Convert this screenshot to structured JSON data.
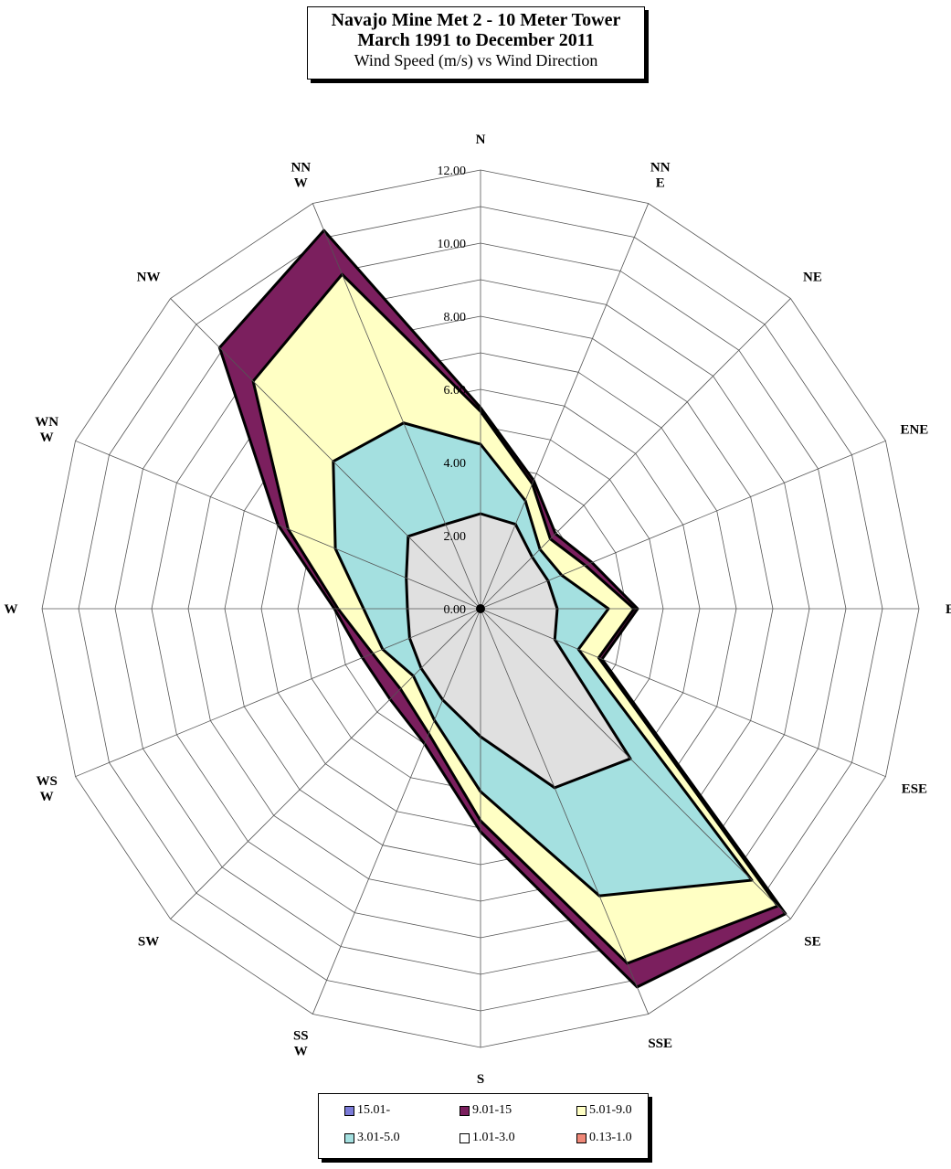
{
  "title": {
    "line1": "Navajo Mine Met 2 - 10 Meter Tower",
    "line2": "March 1991 to December 2011",
    "line3": "Wind Speed (m/s) vs Wind Direction"
  },
  "chart_data": {
    "type": "radar",
    "title": "Navajo Mine Met 2 - 10 Meter Tower March 1991 to December 2011 Wind Speed (m/s) vs Wind Direction",
    "directions": [
      [
        "N"
      ],
      [
        "NN",
        "E"
      ],
      [
        "NE"
      ],
      [
        "ENE"
      ],
      [
        "E"
      ],
      [
        "ESE"
      ],
      [
        "SE"
      ],
      [
        "SSE"
      ],
      [
        "S"
      ],
      [
        "SS",
        "W"
      ],
      [
        "SW"
      ],
      [
        "WS",
        "W"
      ],
      [
        "W"
      ],
      [
        "WN",
        "W"
      ],
      [
        "NW"
      ],
      [
        "NN",
        "W"
      ]
    ],
    "radial_ticks": [
      "0.00",
      "2.00",
      "4.00",
      "6.00",
      "8.00",
      "10.00",
      "12.00"
    ],
    "rmax": 12,
    "series": [
      {
        "name": "9.01-15",
        "color": "#7b1f5e",
        "values": [
          5.5,
          3.8,
          2.9,
          3.3,
          4.3,
          3.6,
          11.8,
          11.2,
          6.1,
          4.0,
          3.5,
          3.5,
          4.0,
          6.0,
          10.1,
          11.2
        ]
      },
      {
        "name": "5.01-9.0",
        "color": "#ffffc4",
        "values": [
          5.4,
          3.7,
          2.7,
          3.1,
          4.2,
          3.5,
          11.5,
          10.5,
          5.8,
          3.7,
          3.1,
          3.2,
          3.9,
          5.7,
          8.8,
          9.9
        ]
      },
      {
        "name": "3.01-5.0",
        "color": "#a4e0e0",
        "values": [
          4.5,
          3.2,
          2.3,
          2.4,
          3.5,
          2.9,
          10.5,
          8.5,
          5.0,
          3.3,
          2.6,
          2.9,
          3.2,
          4.3,
          5.7,
          5.5
        ]
      },
      {
        "name": "1.01-3.0",
        "color": "#e0e0e0",
        "values": [
          2.6,
          2.5,
          2.0,
          2.0,
          2.1,
          2.2,
          5.8,
          5.3,
          3.5,
          2.7,
          2.3,
          2.1,
          2.0,
          2.2,
          2.8,
          2.5
        ]
      }
    ],
    "legend": [
      {
        "label": "15.01-",
        "color": "#7b7bd8"
      },
      {
        "label": "9.01-15",
        "color": "#7b1f5e"
      },
      {
        "label": "5.01-9.0",
        "color": "#ffffc4"
      },
      {
        "label": "3.01-5.0",
        "color": "#a4e0e0"
      },
      {
        "label": "1.01-3.0",
        "color": "#ffffff"
      },
      {
        "label": "0.13-1.0",
        "color": "#f08878"
      }
    ],
    "legend_position": "bottom"
  }
}
